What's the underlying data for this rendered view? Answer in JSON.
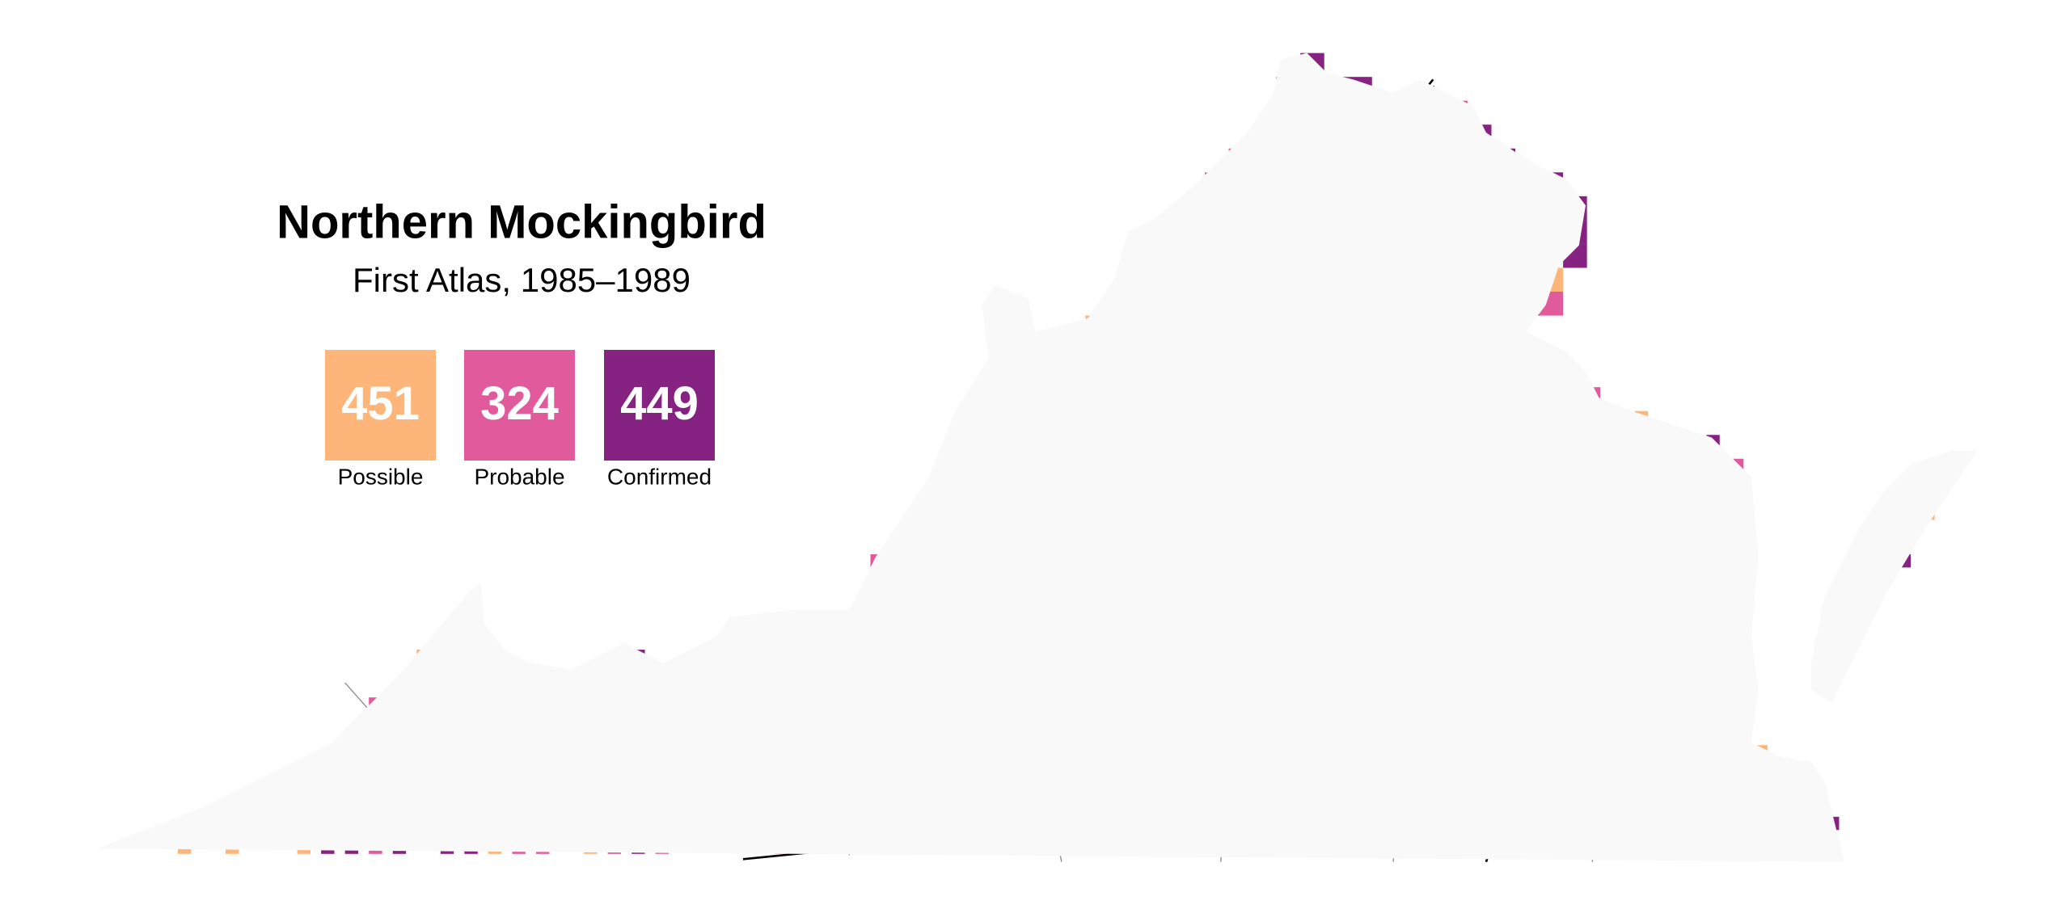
{
  "title": "Northern Mockingbird",
  "subtitle": "First Atlas, 1985–1989",
  "legend": [
    {
      "label": "Possible",
      "count": "451",
      "color": "#fdb57a"
    },
    {
      "label": "Probable",
      "count": "324",
      "color": "#e05a9c"
    },
    {
      "label": "Confirmed",
      "count": "449",
      "color": "#862281"
    }
  ]
}
